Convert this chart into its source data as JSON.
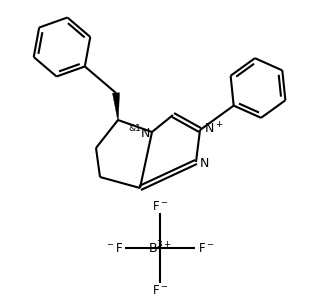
{
  "bg_color": "#ffffff",
  "line_color": "#000000",
  "line_width": 1.5,
  "fig_width": 3.2,
  "fig_height": 3.08,
  "dpi": 100
}
